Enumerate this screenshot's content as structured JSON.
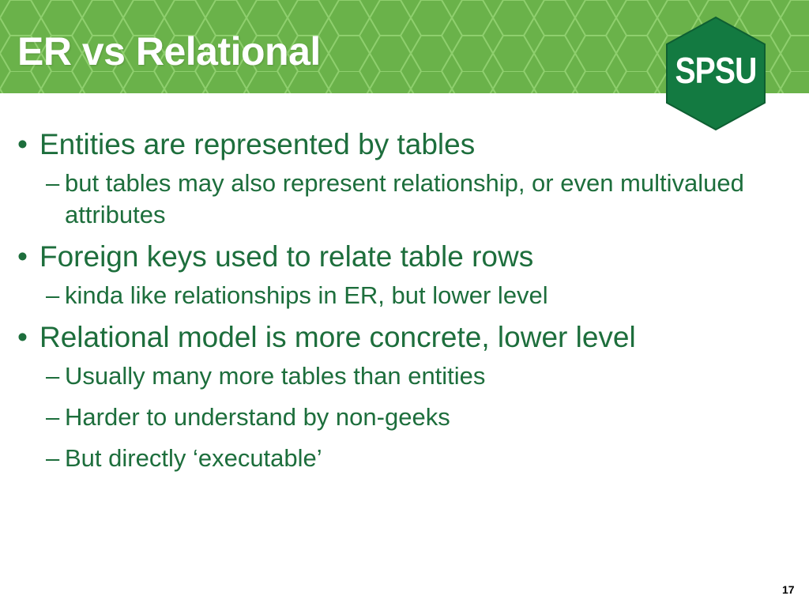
{
  "slide": {
    "title": "ER vs Relational",
    "logo_text": "SPSU",
    "page_number": "17"
  },
  "colors": {
    "header_green": "#6ab24a",
    "logo_green": "#137a41",
    "text_green": "#1d6e3c"
  },
  "bullets": [
    {
      "text": "Entities are represented by tables",
      "subs": [
        "but tables may also represent relationship, or even multivalued attributes"
      ]
    },
    {
      "text": "Foreign keys used to relate table rows",
      "subs": [
        "kinda like relationships in ER, but lower level"
      ]
    },
    {
      "text": "Relational model is more concrete, lower level",
      "subs": [
        "Usually many more tables than entities",
        "Harder to understand by non-geeks",
        "But directly ‘executable’"
      ]
    }
  ]
}
